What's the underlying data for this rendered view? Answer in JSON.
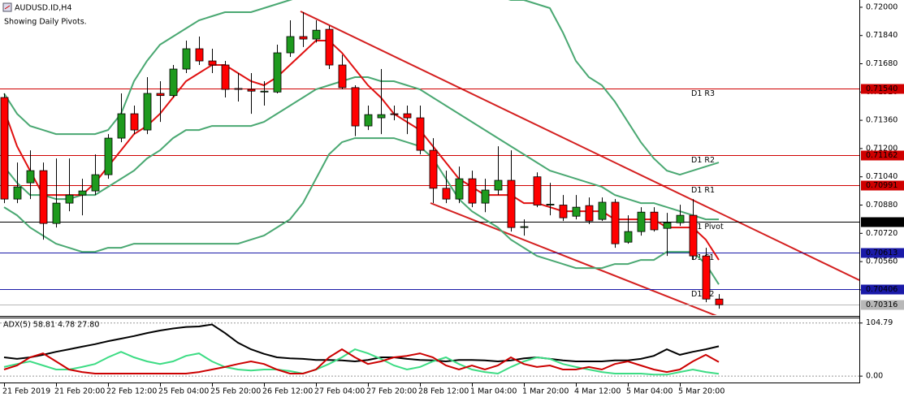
{
  "chart_data": [
    {
      "type": "candlestick",
      "title": "AUDUSD.ID,H4",
      "subtitle": "Showing Daily Pivots.",
      "categories": [
        "21 Feb 2019",
        null,
        null,
        null,
        "21 Feb 20:00",
        null,
        null,
        null,
        "22 Feb 12:00",
        null,
        null,
        null,
        "25 Feb 04:00",
        null,
        null,
        null,
        "25 Feb 20:00",
        null,
        null,
        null,
        "26 Feb 12:00",
        null,
        null,
        null,
        "27 Feb 04:00",
        null,
        null,
        null,
        "27 Feb 20:00",
        null,
        null,
        null,
        "28 Feb 12:00",
        null,
        null,
        null,
        "1 Mar 04:00",
        null,
        null,
        null,
        "1 Mar 20:00",
        null,
        null,
        null,
        "4 Mar 12:00",
        null,
        null,
        null,
        "5 Mar 04:00",
        null,
        null,
        null,
        "5 Mar 20:00",
        null,
        null,
        null
      ],
      "open": [
        0.71489,
        0.70914,
        0.71006,
        0.71075,
        0.70776,
        0.70891,
        0.70937,
        0.7096,
        0.71052,
        0.71259,
        0.71397,
        0.71305,
        0.71512,
        0.715,
        0.7165,
        0.71765,
        0.71696,
        0.71673,
        0.7154,
        0.71535,
        0.7152,
        0.7152,
        0.71742,
        0.71834,
        0.7182,
        0.71875,
        0.71673,
        0.71545,
        0.71328,
        0.71374,
        0.71397,
        0.71397,
        0.71374,
        0.7119,
        0.70975,
        0.70914,
        0.71029,
        0.70891,
        0.70965,
        0.7102,
        0.70753,
        0.7104,
        0.7088,
        0.7088,
        0.70817,
        0.70877,
        0.70799,
        0.70896,
        0.7067,
        0.7073,
        0.7084,
        0.70748,
        0.7078,
        0.70822,
        0.70592,
        0.70348
      ],
      "high": [
        0.71512,
        0.71121,
        0.7119,
        0.71121,
        0.71144,
        0.71144,
        0.71029,
        0.71167,
        0.71282,
        0.71512,
        0.71443,
        0.71604,
        0.71581,
        0.71673,
        0.71811,
        0.71834,
        0.71765,
        0.71696,
        0.71627,
        0.71627,
        0.71581,
        0.71788,
        0.71926,
        0.71972,
        0.71926,
        0.71895,
        0.7173,
        0.71558,
        0.71443,
        0.7165,
        0.71443,
        0.71443,
        0.71443,
        0.71259,
        0.71075,
        0.71098,
        0.71075,
        0.71029,
        0.71213,
        0.7119,
        0.70799,
        0.71065,
        0.71006,
        0.70937,
        0.70937,
        0.70923,
        0.70923,
        0.70914,
        0.70822,
        0.70868,
        0.70868,
        0.70836,
        0.70882,
        0.70914,
        0.70638,
        0.70376
      ],
      "low": [
        0.70891,
        0.70891,
        0.70914,
        0.70684,
        0.70753,
        0.70845,
        0.70822,
        0.70937,
        0.71029,
        0.71236,
        0.71282,
        0.71282,
        0.71351,
        0.71489,
        0.71627,
        0.71673,
        0.71627,
        0.71489,
        0.71466,
        0.71397,
        0.71443,
        0.71512,
        0.71719,
        0.71775,
        0.718,
        0.7165,
        0.71535,
        0.7127,
        0.71305,
        0.71282,
        0.7136,
        0.71282,
        0.71167,
        0.70891,
        0.70891,
        0.70891,
        0.70868,
        0.7084,
        0.70937,
        0.7073,
        0.70707,
        0.70868,
        0.70822,
        0.7079,
        0.70799,
        0.70772,
        0.7079,
        0.70638,
        0.70661,
        0.70707,
        0.7073,
        0.70592,
        0.70762,
        0.70569,
        0.7033,
        0.70293
      ],
      "close": [
        0.70914,
        0.70983,
        0.71075,
        0.70776,
        0.70891,
        0.70937,
        0.7096,
        0.71052,
        0.71259,
        0.71397,
        0.71305,
        0.71512,
        0.715,
        0.7165,
        0.71765,
        0.71696,
        0.71673,
        0.71535,
        0.71535,
        0.71525,
        0.71525,
        0.71742,
        0.71834,
        0.7182,
        0.7187,
        0.71673,
        0.71545,
        0.71328,
        0.71392,
        0.71392,
        0.71392,
        0.71374,
        0.7119,
        0.70975,
        0.70914,
        0.71029,
        0.70891,
        0.70965,
        0.7102,
        0.70753,
        0.70758,
        0.7088,
        0.70885,
        0.70808,
        0.70868,
        0.7079,
        0.70896,
        0.70661,
        0.7073,
        0.7084,
        0.7074,
        0.7078,
        0.70822,
        0.70592,
        0.70348,
        0.70316
      ],
      "up_color": "#1e9a1e",
      "down_color": "#ff0000",
      "ma": {
        "color": "#e01010",
        "values": [
          0.7142,
          0.71213,
          0.71075,
          0.70937,
          0.70937,
          0.70937,
          0.70937,
          0.71006,
          0.71098,
          0.7119,
          0.71282,
          0.71328,
          0.71397,
          0.71489,
          0.71581,
          0.71627,
          0.71673,
          0.71673,
          0.71627,
          0.71581,
          0.71558,
          0.71604,
          0.71673,
          0.71742,
          0.71811,
          0.71811,
          0.71742,
          0.7165,
          0.71558,
          0.71489,
          0.71397,
          0.71351,
          0.71305,
          0.71213,
          0.71121,
          0.71029,
          0.70983,
          0.70937,
          0.70937,
          0.70937,
          0.70891,
          0.70891,
          0.70868,
          0.70845,
          0.70845,
          0.70845,
          0.70845,
          0.70799,
          0.70799,
          0.70799,
          0.70799,
          0.70753,
          0.70753,
          0.70753,
          0.70684,
          0.70569
        ]
      },
      "bollinger": {
        "color": "#4aa872",
        "upper": [
          0.71512,
          0.71397,
          0.71328,
          0.71305,
          0.71282,
          0.71282,
          0.71282,
          0.71282,
          0.71305,
          0.71397,
          0.71581,
          0.71696,
          0.71788,
          0.71834,
          0.7188,
          0.71926,
          0.71949,
          0.71972,
          0.71972,
          0.71972,
          0.71995,
          0.72018,
          0.72041,
          0.72064,
          0.72087,
          0.72087,
          0.72087,
          0.72087,
          0.72087,
          0.72087,
          0.72087,
          0.72087,
          0.72087,
          0.72087,
          0.72087,
          0.72087,
          0.72087,
          0.72087,
          0.72064,
          0.72041,
          0.72041,
          0.72018,
          0.71995,
          0.71857,
          0.71696,
          0.71604,
          0.71558,
          0.71466,
          0.71351,
          0.71236,
          0.71144,
          0.71075,
          0.71052,
          0.71075,
          0.71098,
          0.71121
        ],
        "middle": [
          0.71098,
          0.71006,
          0.70937,
          0.70937,
          0.70914,
          0.70914,
          0.70937,
          0.70937,
          0.70983,
          0.71029,
          0.71075,
          0.71144,
          0.7119,
          0.71259,
          0.71305,
          0.71305,
          0.71328,
          0.71328,
          0.71328,
          0.71328,
          0.71351,
          0.71397,
          0.71443,
          0.71489,
          0.71535,
          0.71558,
          0.71581,
          0.71604,
          0.71604,
          0.71581,
          0.71581,
          0.71558,
          0.71535,
          0.71489,
          0.71443,
          0.71397,
          0.71351,
          0.71305,
          0.71259,
          0.71213,
          0.71167,
          0.71121,
          0.71075,
          0.71052,
          0.71029,
          0.71006,
          0.70983,
          0.70937,
          0.70914,
          0.70891,
          0.70891,
          0.70868,
          0.70845,
          0.70822,
          0.70799,
          0.70799
        ],
        "lower": [
          0.70868,
          0.70822,
          0.70753,
          0.70707,
          0.70661,
          0.70638,
          0.70615,
          0.70615,
          0.70638,
          0.70638,
          0.70661,
          0.70661,
          0.70661,
          0.70661,
          0.70661,
          0.70661,
          0.70661,
          0.70661,
          0.70661,
          0.70684,
          0.70707,
          0.70753,
          0.70799,
          0.70891,
          0.71029,
          0.71167,
          0.71236,
          0.71259,
          0.71259,
          0.71259,
          0.71259,
          0.71236,
          0.71213,
          0.71144,
          0.71029,
          0.70914,
          0.70845,
          0.70799,
          0.70753,
          0.70684,
          0.70638,
          0.70592,
          0.70569,
          0.70546,
          0.70523,
          0.70523,
          0.70523,
          0.70546,
          0.70546,
          0.70569,
          0.70569,
          0.70615,
          0.70615,
          0.70615,
          0.70546,
          0.70431
        ]
      },
      "pivots": [
        {
          "label": "D1 R3",
          "value": 0.7154,
          "price_label": "0.71540",
          "color": "#d00000"
        },
        {
          "label": "D1 R2",
          "value": 0.71162,
          "price_label": "0.71162",
          "color": "#d00000"
        },
        {
          "label": "D1 R1",
          "value": 0.70991,
          "price_label": "0.70991",
          "color": "#d00000"
        },
        {
          "label": "D1 Pivot",
          "value": 0.70784,
          "price_label": "0.70784",
          "color": "#000000"
        },
        {
          "label": "D1 S1",
          "value": 0.70613,
          "price_label": "0.70613",
          "color": "#1a1aa8"
        },
        {
          "label": "D1 S2",
          "value": 0.70406,
          "price_label": "0.70406",
          "color": "#1a1aa8"
        }
      ],
      "current_price": {
        "value": 0.70316,
        "label": "0.70316",
        "color": "#b8b8b8"
      },
      "ylim": [
        0.70257,
        0.72041
      ],
      "yticks": [
        {
          "value": 0.72,
          "label": "0.72000"
        },
        {
          "value": 0.7184,
          "label": "0.71840"
        },
        {
          "value": 0.7168,
          "label": "0.71680"
        },
        {
          "value": 0.7152,
          "label": "0.71520"
        },
        {
          "value": 0.7136,
          "label": "0.71360"
        },
        {
          "value": 0.712,
          "label": "0.71200"
        },
        {
          "value": 0.7104,
          "label": "0.71040"
        },
        {
          "value": 0.7088,
          "label": "0.70880"
        },
        {
          "value": 0.7072,
          "label": "0.70720"
        },
        {
          "value": 0.7056,
          "label": "0.70560"
        },
        {
          "value": 0.704,
          "label": "0.70400"
        }
      ]
    },
    {
      "type": "line",
      "title": "ADX(5) 58.81 4.78 27.80",
      "series": [
        {
          "color": "#000000",
          "values": [
            37,
            34,
            37,
            42,
            48,
            53,
            58,
            63,
            69,
            74,
            79,
            85,
            90,
            94,
            97,
            98,
            102,
            85,
            66,
            53,
            44,
            37,
            35,
            34,
            32,
            32,
            31,
            29,
            32,
            37,
            37,
            34,
            32,
            31,
            29,
            32,
            32,
            31,
            29,
            31,
            35,
            37,
            34,
            31,
            29,
            29,
            29,
            31,
            31,
            34,
            40,
            53,
            42,
            48,
            53,
            58.81
          ]
        },
        {
          "color": "#3ddc84",
          "values": [
            18,
            24,
            29,
            21,
            13,
            13,
            18,
            24,
            37,
            48,
            37,
            29,
            24,
            29,
            40,
            45,
            29,
            18,
            13,
            11,
            13,
            13,
            10,
            5,
            13,
            24,
            37,
            53,
            45,
            34,
            21,
            13,
            18,
            29,
            37,
            24,
            13,
            8,
            5,
            18,
            29,
            37,
            34,
            24,
            18,
            13,
            8,
            5,
            5,
            5,
            3,
            3,
            8,
            13,
            8,
            4.78
          ]
        },
        {
          "color": "#cc0000",
          "values": [
            13,
            21,
            37,
            45,
            29,
            13,
            8,
            5,
            5,
            5,
            5,
            5,
            5,
            5,
            5,
            8,
            13,
            18,
            24,
            29,
            24,
            13,
            5,
            5,
            13,
            37,
            53,
            37,
            24,
            29,
            37,
            40,
            45,
            37,
            21,
            13,
            21,
            13,
            21,
            37,
            24,
            18,
            21,
            13,
            13,
            18,
            13,
            24,
            29,
            21,
            13,
            8,
            13,
            29,
            42,
            27.8
          ]
        }
      ],
      "ylim": [
        -11,
        114
      ],
      "yticks": [
        104.79,
        {
          "value": 0,
          "label": "0.00"
        }
      ]
    }
  ]
}
